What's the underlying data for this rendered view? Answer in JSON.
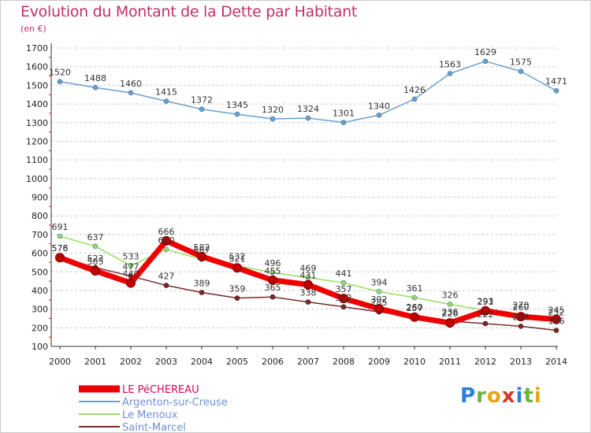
{
  "title": "Evolution du Montant de la Dette par Habitant",
  "unit": "(en €)",
  "logo": {
    "letters": [
      "P",
      "r",
      "o",
      "x",
      "i",
      "t",
      "i"
    ],
    "colors": [
      "#2b7fd6",
      "#6db33f",
      "#e8a317",
      "#d9362b",
      "#2b7fd6",
      "#6db33f",
      "#e8a317"
    ]
  },
  "chart_data": {
    "type": "line",
    "title": "Evolution du Montant de la Dette par Habitant",
    "ylabel": "(en €)",
    "xlabel": "",
    "x": [
      "2000",
      "2001",
      "2002",
      "2003",
      "2004",
      "2005",
      "2006",
      "2007",
      "2008",
      "2009",
      "2010",
      "2011",
      "2012",
      "2013",
      "2014"
    ],
    "ylim": [
      100,
      1700
    ],
    "yticks": [
      100,
      200,
      300,
      400,
      500,
      600,
      700,
      800,
      900,
      1000,
      1100,
      1200,
      1300,
      1400,
      1500,
      1600,
      1700
    ],
    "grid": "horizontal dashed",
    "legend_position": "bottom-left",
    "series": [
      {
        "name": "LE PéCHEREAU",
        "color": "#ee0000",
        "values": [
          576,
          505,
          440,
          666,
          582,
          521,
          455,
          431,
          357,
          302,
          257,
          226,
          291,
          260,
          245
        ],
        "labels": [
          "576",
          "505",
          "440",
          "666",
          "582",
          "521",
          "455",
          "431",
          "357",
          "302",
          "257",
          "226",
          "291",
          "260",
          "245"
        ]
      },
      {
        "name": "Argenton-sur-Creuse",
        "color": "#6a9fd0",
        "values": [
          1520,
          1488,
          1460,
          1415,
          1372,
          1345,
          1320,
          1324,
          1301,
          1340,
          1426,
          1563,
          1629,
          1575,
          1471
        ],
        "labels": [
          "1520",
          "1488",
          "1460",
          "1415",
          "1372",
          "1345",
          "1320",
          "1324",
          "1301",
          "1340",
          "1426",
          "1563",
          "1629",
          "1575",
          "1471"
        ]
      },
      {
        "name": "Le Menoux",
        "color": "#99dd66",
        "values": [
          691,
          637,
          533,
          620,
          567,
          532,
          496,
          469,
          441,
          394,
          361,
          326,
          293,
          270,
          232
        ],
        "labels": [
          "691",
          "637",
          "533",
          "620",
          "567",
          "532",
          "496",
          "469",
          "441",
          "394",
          "361",
          "326",
          "293",
          "270",
          "232"
        ]
      },
      {
        "name": "Saint-Marcel",
        "color": "#7a2a2a",
        "values": [
          578,
          523,
          477,
          427,
          389,
          359,
          365,
          338,
          312,
          285,
          260,
          236,
          222,
          208,
          186
        ],
        "labels": [
          "578",
          "523",
          "477",
          "427",
          "389",
          "359",
          "365",
          "338",
          "312",
          "285",
          "260",
          "236",
          "222",
          "208",
          "186"
        ]
      }
    ]
  }
}
